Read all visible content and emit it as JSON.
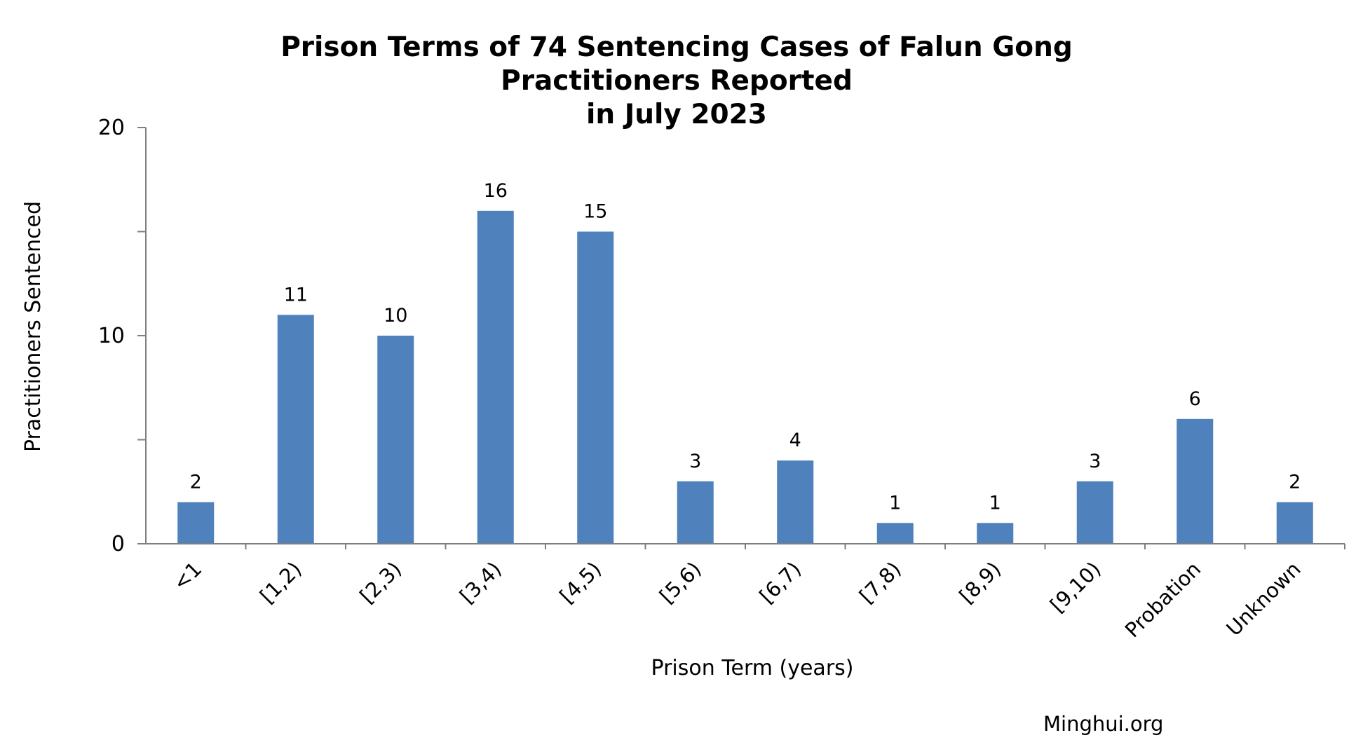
{
  "chart_data": {
    "type": "bar",
    "title_lines": [
      "Prison Terms of 74 Sentencing Cases of Falun Gong Practitioners Reported",
      "in July 2023"
    ],
    "xlabel": "Prison Term (years)",
    "ylabel": "Practitioners Sentenced",
    "categories": [
      "<1",
      "[1,2)",
      "[2,3)",
      "[3,4)",
      "[4,5)",
      "[5,6)",
      "[6,7)",
      "[7,8)",
      "[8,9)",
      "[9,10)",
      "Probation",
      "Unknown"
    ],
    "values": [
      2,
      11,
      10,
      16,
      15,
      3,
      4,
      1,
      1,
      3,
      6,
      2
    ],
    "ylim": [
      0,
      20
    ],
    "yticks": [
      0,
      10,
      20
    ],
    "yminor_ticks": [
      5,
      15
    ],
    "data_labels": true,
    "grid": false,
    "legend": "none",
    "bar_color": "#4f81bd"
  },
  "credit": "Minghui.org"
}
